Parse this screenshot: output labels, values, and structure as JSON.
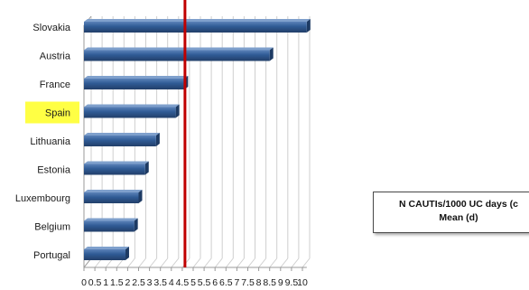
{
  "chart_data": {
    "type": "bar",
    "orientation": "horizontal",
    "categories": [
      "Slovakia",
      "Austria",
      "France",
      "Spain",
      "Lithuania",
      "Estonia",
      "Luxembourg",
      "Belgium",
      "Portugal"
    ],
    "values": [
      10.2,
      8.5,
      4.6,
      4.2,
      3.3,
      2.8,
      2.5,
      2.3,
      1.9
    ],
    "highlighted_category": "Spain",
    "reference_line": {
      "value": 4.5,
      "color": "#c00000"
    },
    "x_ticks": [
      "0",
      "0.5",
      "1",
      "1.5",
      "2",
      "2.5",
      "3",
      "3.5",
      "4",
      "4.5",
      "5",
      "5.5",
      "6",
      "6.5",
      "7",
      "7.5",
      "8",
      "8.5",
      "9",
      "9.5",
      "10"
    ],
    "xlim": [
      0,
      10.2
    ],
    "grid": "vertical",
    "bar_color": "#2f5a94",
    "highlight_color": "#ffff44",
    "annotation": {
      "line1": "N CAUTIs/1000 UC days (c",
      "line2": "Mean (d)"
    }
  }
}
